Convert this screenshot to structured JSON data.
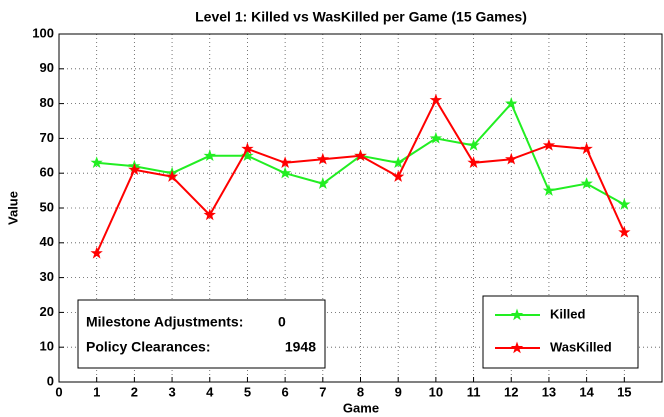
{
  "chart_data": {
    "type": "line",
    "title": "Level 1: Killed vs WasKilled per Game (15 Games)",
    "xlabel": "Game",
    "ylabel": "Value",
    "x": [
      1,
      2,
      3,
      4,
      5,
      6,
      7,
      8,
      9,
      10,
      11,
      12,
      13,
      14,
      15
    ],
    "series": [
      {
        "name": "Killed",
        "color": "#22ee22",
        "values": [
          63,
          62,
          60,
          65,
          65,
          60,
          57,
          65,
          63,
          70,
          68,
          80,
          55,
          57,
          51
        ]
      },
      {
        "name": "WasKilled",
        "color": "#ff0000",
        "values": [
          37,
          61,
          59,
          48,
          67,
          63,
          64,
          65,
          59,
          81,
          63,
          64,
          68,
          67,
          43
        ]
      }
    ],
    "xlim": [
      0,
      16
    ],
    "xticks": [
      0,
      1,
      2,
      3,
      4,
      5,
      6,
      7,
      8,
      9,
      10,
      11,
      12,
      13,
      14,
      15
    ],
    "ylim": [
      0,
      100
    ],
    "yticks": [
      0,
      10,
      20,
      30,
      40,
      50,
      60,
      70,
      80,
      90,
      100
    ],
    "grid": true,
    "legend": "lower right",
    "annotations": [
      {
        "label": "Milestone Adjustments:",
        "value": 0
      },
      {
        "label": "Policy Clearances:",
        "value": 1948
      }
    ]
  }
}
